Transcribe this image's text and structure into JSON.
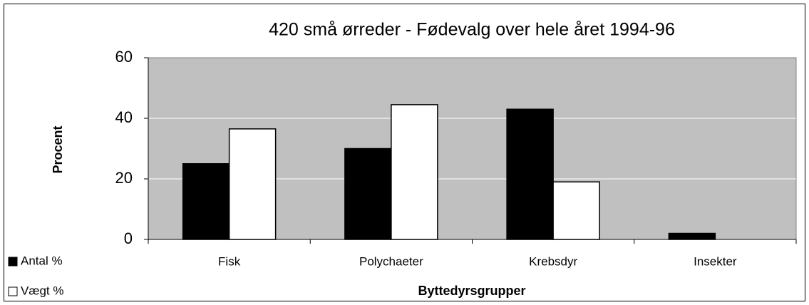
{
  "chart_data": {
    "type": "bar",
    "title": "420 små ørreder - Fødevalg over hele året 1994-96",
    "y_label": "Procent",
    "x_label": "Byttedyrsgrupper",
    "categories": [
      "Fisk",
      "Polychaeter",
      "Krebsdyr",
      "Insekter"
    ],
    "series": [
      {
        "name": "Antal %",
        "color": "#000000",
        "values": [
          25,
          30,
          43,
          2
        ]
      },
      {
        "name": "Vægt %",
        "color": "#ffffff",
        "values": [
          36.5,
          44.5,
          19,
          0
        ]
      }
    ],
    "ylim": [
      0,
      60
    ],
    "yticks": [
      0,
      20,
      40,
      60
    ],
    "grid": true,
    "legend": "bottom-left"
  }
}
